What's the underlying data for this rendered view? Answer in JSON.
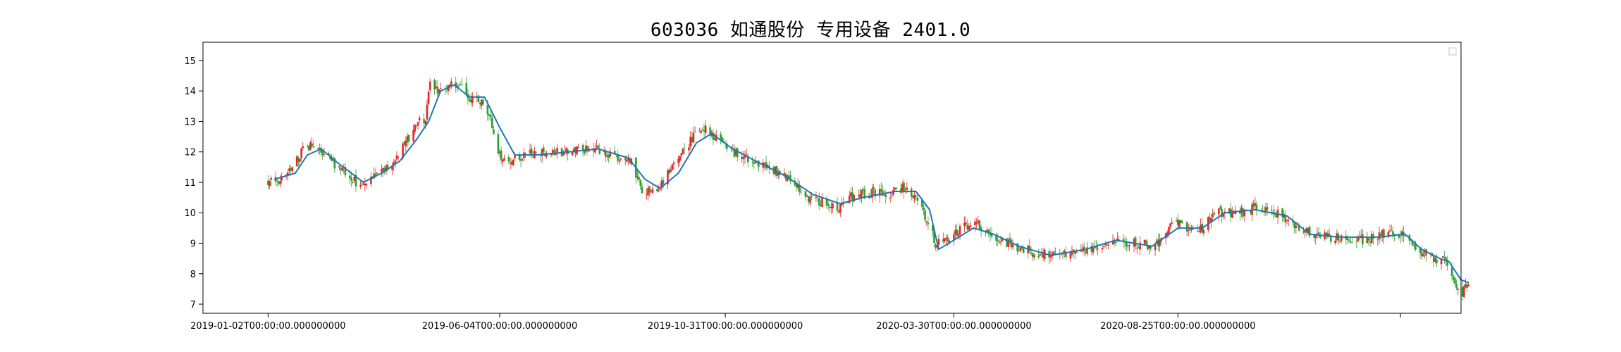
{
  "chart_data": {
    "type": "candlestick",
    "title": "603036 如通股份 专用设备 2401.0",
    "xlabel": "",
    "ylabel": "",
    "ylim": [
      6.7,
      15.6
    ],
    "y_ticks": [
      7,
      8,
      9,
      10,
      11,
      12,
      13,
      14,
      15
    ],
    "x_ticks": [
      {
        "date": "2019-01-02",
        "label": "2019-01-02T00:00:00.000000000"
      },
      {
        "date": "2019-06-04",
        "label": "2019-06-04T00:00:00.000000000"
      },
      {
        "date": "2019-10-31",
        "label": "2019-10-31T00:00:00.000000000"
      },
      {
        "date": "2020-03-30",
        "label": "2020-03-30T00:00:00.000000000"
      },
      {
        "date": "2020-08-25",
        "label": "2020-08-25T00:00:00.000000000"
      },
      {
        "date": "2021-01-19",
        "label": ""
      }
    ],
    "x_range": [
      "2018-11-20",
      "2021-02-28"
    ],
    "grid": false,
    "legend": {
      "position": "top-right",
      "entries": []
    },
    "colors": {
      "up": "#e8262a",
      "down": "#2ca02c",
      "ma": "#1f77b4"
    },
    "close_path": [
      [
        "2019-01-02",
        11.0
      ],
      [
        "2019-01-10",
        11.1
      ],
      [
        "2019-01-18",
        11.4
      ],
      [
        "2019-01-25",
        12.1
      ],
      [
        "2019-02-01",
        12.2
      ],
      [
        "2019-02-15",
        11.6
      ],
      [
        "2019-02-25",
        11.2
      ],
      [
        "2019-03-05",
        10.8
      ],
      [
        "2019-03-15",
        11.3
      ],
      [
        "2019-03-25",
        11.6
      ],
      [
        "2019-04-02",
        12.2
      ],
      [
        "2019-04-10",
        13.0
      ],
      [
        "2019-04-16",
        13.1
      ],
      [
        "2019-04-19",
        14.4
      ],
      [
        "2019-04-24",
        13.9
      ],
      [
        "2019-04-30",
        14.1
      ],
      [
        "2019-05-08",
        14.3
      ],
      [
        "2019-05-15",
        13.8
      ],
      [
        "2019-05-22",
        13.7
      ],
      [
        "2019-05-28",
        13.2
      ],
      [
        "2019-06-04",
        11.9
      ],
      [
        "2019-06-12",
        11.7
      ],
      [
        "2019-06-24",
        11.9
      ],
      [
        "2019-07-05",
        12.0
      ],
      [
        "2019-07-20",
        12.0
      ],
      [
        "2019-08-05",
        12.1
      ],
      [
        "2019-08-20",
        11.8
      ],
      [
        "2019-08-30",
        11.7
      ],
      [
        "2019-09-05",
        10.8
      ],
      [
        "2019-09-12",
        10.7
      ],
      [
        "2019-09-20",
        11.0
      ],
      [
        "2019-09-27",
        11.6
      ],
      [
        "2019-10-10",
        12.5
      ],
      [
        "2019-10-18",
        12.7
      ],
      [
        "2019-10-28",
        12.4
      ],
      [
        "2019-11-08",
        11.9
      ],
      [
        "2019-11-18",
        11.7
      ],
      [
        "2019-12-02",
        11.4
      ],
      [
        "2019-12-15",
        11.0
      ],
      [
        "2019-12-25",
        10.5
      ],
      [
        "2020-01-06",
        10.3
      ],
      [
        "2020-01-14",
        10.2
      ],
      [
        "2020-01-21",
        10.5
      ],
      [
        "2020-02-05",
        10.7
      ],
      [
        "2020-02-15",
        10.6
      ],
      [
        "2020-02-25",
        10.8
      ],
      [
        "2020-03-05",
        10.6
      ],
      [
        "2020-03-12",
        9.8
      ],
      [
        "2020-03-18",
        9.0
      ],
      [
        "2020-03-24",
        9.1
      ],
      [
        "2020-04-05",
        9.5
      ],
      [
        "2020-04-15",
        9.6
      ],
      [
        "2020-04-28",
        9.1
      ],
      [
        "2020-05-10",
        8.9
      ],
      [
        "2020-05-22",
        8.7
      ],
      [
        "2020-06-05",
        8.6
      ],
      [
        "2020-06-20",
        8.8
      ],
      [
        "2020-07-02",
        8.8
      ],
      [
        "2020-07-14",
        9.1
      ],
      [
        "2020-07-28",
        9.0
      ],
      [
        "2020-08-10",
        8.9
      ],
      [
        "2020-08-20",
        9.6
      ],
      [
        "2020-08-28",
        9.6
      ],
      [
        "2020-09-08",
        9.4
      ],
      [
        "2020-09-20",
        10.0
      ],
      [
        "2020-10-05",
        10.0
      ],
      [
        "2020-10-18",
        10.2
      ],
      [
        "2020-11-02",
        9.9
      ],
      [
        "2020-11-12",
        9.5
      ],
      [
        "2020-11-25",
        9.2
      ],
      [
        "2020-12-05",
        9.2
      ],
      [
        "2020-12-15",
        9.1
      ],
      [
        "2020-12-28",
        9.1
      ],
      [
        "2021-01-08",
        9.3
      ],
      [
        "2021-01-20",
        9.3
      ],
      [
        "2021-01-29",
        8.9
      ],
      [
        "2021-02-05",
        8.6
      ],
      [
        "2021-02-12",
        8.5
      ],
      [
        "2021-02-18",
        8.4
      ],
      [
        "2021-02-24",
        7.6
      ],
      [
        "2021-03-01",
        7.4
      ],
      [
        "2021-03-05",
        7.7
      ]
    ],
    "ma_series": [
      [
        "2019-01-06",
        11.1
      ],
      [
        "2019-01-20",
        11.3
      ],
      [
        "2019-01-28",
        11.9
      ],
      [
        "2019-02-06",
        12.1
      ],
      [
        "2019-02-18",
        11.6
      ],
      [
        "2019-03-06",
        11.0
      ],
      [
        "2019-03-18",
        11.3
      ],
      [
        "2019-03-30",
        11.7
      ],
      [
        "2019-04-10",
        12.4
      ],
      [
        "2019-04-18",
        13.0
      ],
      [
        "2019-04-26",
        14.0
      ],
      [
        "2019-05-05",
        14.2
      ],
      [
        "2019-05-15",
        13.8
      ],
      [
        "2019-05-25",
        13.8
      ],
      [
        "2019-06-04",
        12.8
      ],
      [
        "2019-06-14",
        11.9
      ],
      [
        "2019-06-28",
        11.9
      ],
      [
        "2019-07-20",
        12.0
      ],
      [
        "2019-08-08",
        12.1
      ],
      [
        "2019-08-28",
        11.8
      ],
      [
        "2019-09-08",
        11.1
      ],
      [
        "2019-09-18",
        10.8
      ],
      [
        "2019-09-30",
        11.3
      ],
      [
        "2019-10-12",
        12.3
      ],
      [
        "2019-10-22",
        12.6
      ],
      [
        "2019-11-05",
        12.1
      ],
      [
        "2019-11-20",
        11.7
      ],
      [
        "2019-12-10",
        11.2
      ],
      [
        "2019-12-28",
        10.6
      ],
      [
        "2020-01-15",
        10.3
      ],
      [
        "2020-01-30",
        10.5
      ],
      [
        "2020-02-20",
        10.7
      ],
      [
        "2020-03-05",
        10.7
      ],
      [
        "2020-03-14",
        10.1
      ],
      [
        "2020-03-20",
        8.8
      ],
      [
        "2020-03-30",
        9.1
      ],
      [
        "2020-04-12",
        9.5
      ],
      [
        "2020-04-25",
        9.3
      ],
      [
        "2020-05-12",
        8.9
      ],
      [
        "2020-06-02",
        8.6
      ],
      [
        "2020-06-25",
        8.8
      ],
      [
        "2020-07-15",
        9.1
      ],
      [
        "2020-08-08",
        8.9
      ],
      [
        "2020-08-25",
        9.5
      ],
      [
        "2020-09-10",
        9.5
      ],
      [
        "2020-09-25",
        10.0
      ],
      [
        "2020-10-15",
        10.1
      ],
      [
        "2020-11-05",
        9.9
      ],
      [
        "2020-11-20",
        9.3
      ],
      [
        "2020-12-10",
        9.2
      ],
      [
        "2021-01-05",
        9.2
      ],
      [
        "2021-01-22",
        9.3
      ],
      [
        "2021-02-02",
        8.8
      ],
      [
        "2021-02-14",
        8.5
      ],
      [
        "2021-02-20",
        8.4
      ],
      [
        "2021-02-28",
        7.8
      ],
      [
        "2021-03-05",
        7.7
      ]
    ]
  }
}
